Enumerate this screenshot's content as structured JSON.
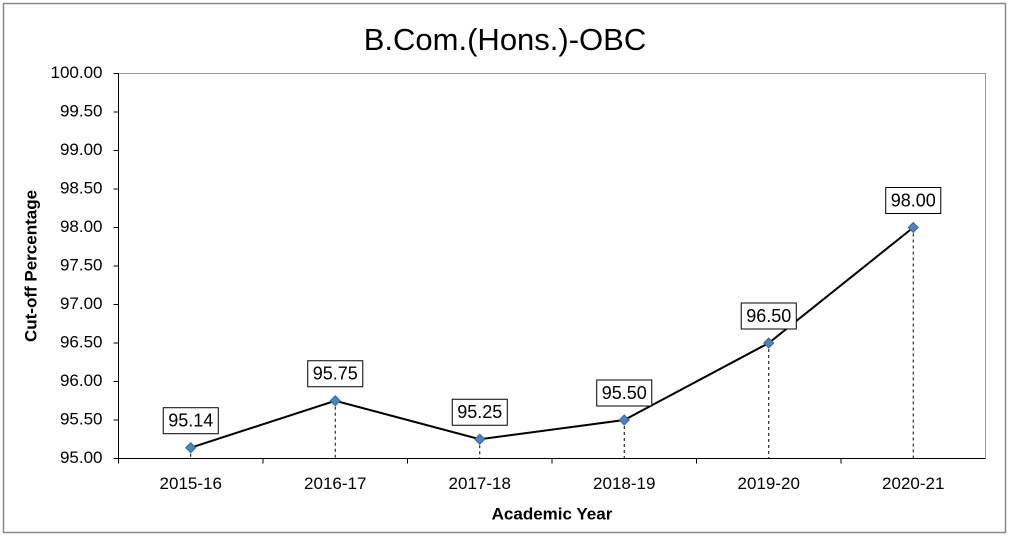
{
  "chart_data": {
    "type": "line",
    "title": "B.Com.(Hons.)-OBC",
    "x_label": "Academic Year",
    "y_label": "Cut-off Percentage",
    "categories": [
      "2015-16",
      "2016-17",
      "2017-18",
      "2018-19",
      "2019-20",
      "2020-21"
    ],
    "series": [
      {
        "name": "B.Com.(Hons.)-OBC",
        "color": "#4f81bd",
        "values": [
          95.14,
          95.75,
          95.25,
          95.5,
          96.5,
          98.0
        ],
        "value_labels": [
          "95.14",
          "95.75",
          "95.25",
          "95.50",
          "96.50",
          "98.00"
        ]
      }
    ],
    "ylim": [
      95,
      100
    ],
    "yticks": [
      {
        "value": 95,
        "label": "95.00"
      },
      {
        "value": 95.5,
        "label": "95.50"
      },
      {
        "value": 96,
        "label": "96.00"
      },
      {
        "value": 96.5,
        "label": "96.50"
      },
      {
        "value": 97,
        "label": "97.00"
      },
      {
        "value": 97.5,
        "label": "97.50"
      },
      {
        "value": 98,
        "label": "98.00"
      },
      {
        "value": 98.5,
        "label": "98.50"
      },
      {
        "value": 99,
        "label": "99.00"
      },
      {
        "value": 99.5,
        "label": "99.50"
      },
      {
        "value": 100,
        "label": "100.00"
      }
    ],
    "grid": false
  }
}
